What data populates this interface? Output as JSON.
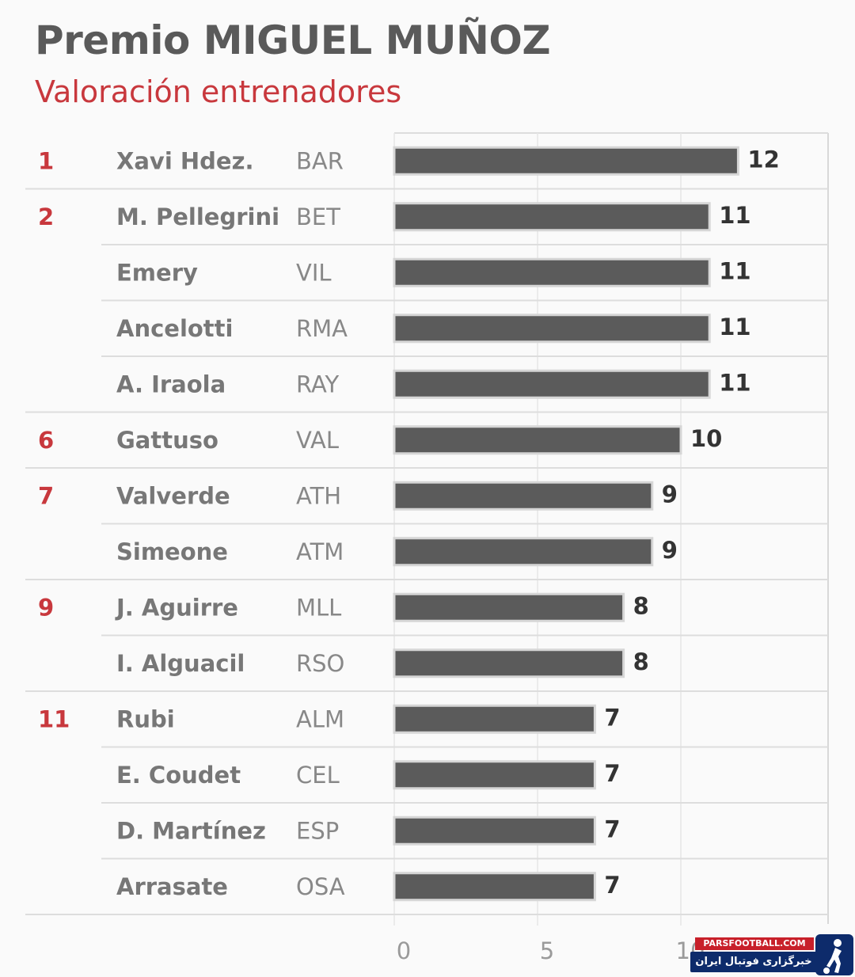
{
  "title": "Premio MIGUEL MUÑOZ",
  "subtitle": "Valoración entrenadores",
  "chart_data": {
    "type": "bar",
    "orientation": "horizontal",
    "columns": [
      "rank",
      "coach",
      "team",
      "value"
    ],
    "rows": [
      {
        "rank": "1",
        "coach": "Xavi Hdez.",
        "team": "BAR",
        "value": 12
      },
      {
        "rank": "2",
        "coach": "M. Pellegrini",
        "team": "BET",
        "value": 11
      },
      {
        "rank": "",
        "coach": "Emery",
        "team": "VIL",
        "value": 11
      },
      {
        "rank": "",
        "coach": "Ancelotti",
        "team": "RMA",
        "value": 11
      },
      {
        "rank": "",
        "coach": "A. Iraola",
        "team": "RAY",
        "value": 11
      },
      {
        "rank": "6",
        "coach": "Gattuso",
        "team": "VAL",
        "value": 10
      },
      {
        "rank": "7",
        "coach": "Valverde",
        "team": "ATH",
        "value": 9
      },
      {
        "rank": "",
        "coach": "Simeone",
        "team": "ATM",
        "value": 9
      },
      {
        "rank": "9",
        "coach": "J. Aguirre",
        "team": "MLL",
        "value": 8
      },
      {
        "rank": "",
        "coach": "I. Alguacil",
        "team": "RSO",
        "value": 8
      },
      {
        "rank": "11",
        "coach": "Rubi",
        "team": "ALM",
        "value": 7
      },
      {
        "rank": "",
        "coach": "E. Coudet",
        "team": "CEL",
        "value": 7
      },
      {
        "rank": "",
        "coach": "D. Martínez",
        "team": "ESP",
        "value": 7
      },
      {
        "rank": "",
        "coach": "Arrasate",
        "team": "OSA",
        "value": 7
      }
    ],
    "x_ticks": [
      "0",
      "5",
      "10"
    ],
    "xlim": [
      0,
      15
    ],
    "grid": true,
    "colors": {
      "bar": "#5b5b5b",
      "rank": "#c8383d",
      "subtitle": "#c8383d"
    }
  },
  "watermark": {
    "top": "PARSFOOTBALL.COM",
    "bottom": "خبرگزاری فوتبال ایران"
  }
}
